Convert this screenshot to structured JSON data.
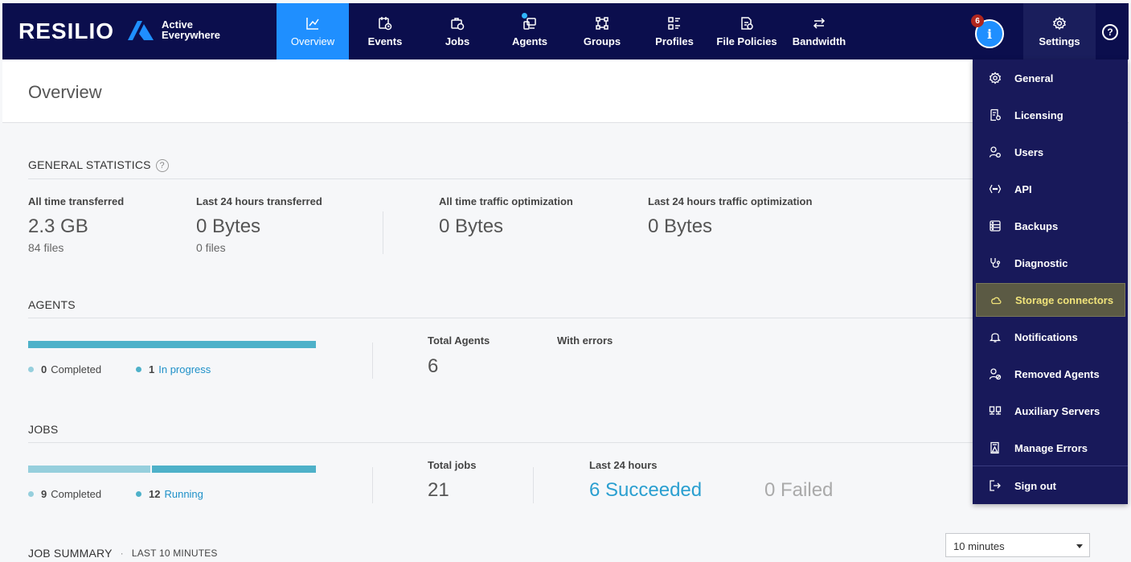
{
  "brand": {
    "name": "RESILIO",
    "product": "Active Everywhere"
  },
  "nav": {
    "items": [
      {
        "label": "Overview",
        "icon": "chart-line-icon"
      },
      {
        "label": "Events",
        "icon": "calendar-clock-icon"
      },
      {
        "label": "Jobs",
        "icon": "briefcase-icon"
      },
      {
        "label": "Agents",
        "icon": "devices-icon"
      },
      {
        "label": "Groups",
        "icon": "group-nodes-icon"
      },
      {
        "label": "Profiles",
        "icon": "profile-grid-icon"
      },
      {
        "label": "File Policies",
        "icon": "file-policy-icon"
      },
      {
        "label": "Bandwidth",
        "icon": "arrows-swap-icon"
      }
    ],
    "notification_count": "6",
    "info_glyph": "i",
    "settings_label": "Settings",
    "help_glyph": "?"
  },
  "page": {
    "title": "Overview"
  },
  "general_statistics": {
    "title": "GENERAL STATISTICS",
    "help": "?",
    "stats": [
      {
        "label": "All time transferred",
        "value": "2.3 GB",
        "sub": "84 files"
      },
      {
        "label": "Last 24 hours transferred",
        "value": "0 Bytes",
        "sub": "0 files"
      },
      {
        "label": "All time traffic optimization",
        "value": "0 Bytes"
      },
      {
        "label": "Last 24 hours traffic optimization",
        "value": "0 Bytes"
      }
    ]
  },
  "agents": {
    "title": "AGENTS",
    "completed_count": "0",
    "completed_label": "Completed",
    "in_progress_count": "1",
    "in_progress_label": "In progress",
    "completed_fraction": 0,
    "total_label": "Total Agents",
    "total_value": "6",
    "errors_label": "With errors"
  },
  "jobs": {
    "title": "JOBS",
    "completed_count": "9",
    "completed_label": "Completed",
    "running_count": "12",
    "running_label": "Running",
    "total_label": "Total jobs",
    "total_value": "21",
    "last24_label": "Last 24 hours",
    "succeeded": "6 Succeeded",
    "failed": "0 Failed"
  },
  "job_summary": {
    "title": "JOB SUMMARY",
    "separator": "·",
    "subtitle": "LAST 10 MINUTES",
    "range": "10 minutes"
  },
  "settings_menu": {
    "items": [
      {
        "label": "General",
        "icon": "gear-icon"
      },
      {
        "label": "Licensing",
        "icon": "license-icon"
      },
      {
        "label": "Users",
        "icon": "users-icon"
      },
      {
        "label": "API",
        "icon": "api-icon"
      },
      {
        "label": "Backups",
        "icon": "backup-icon"
      },
      {
        "label": "Diagnostic",
        "icon": "stethoscope-icon"
      },
      {
        "label": "Storage connectors",
        "icon": "cloud-icon"
      },
      {
        "label": "Notifications",
        "icon": "bell-icon"
      },
      {
        "label": "Removed Agents",
        "icon": "removed-user-icon"
      },
      {
        "label": "Auxiliary Servers",
        "icon": "servers-icon"
      },
      {
        "label": "Manage Errors",
        "icon": "error-file-icon"
      },
      {
        "label": "Sign out",
        "icon": "sign-out-icon"
      }
    ]
  },
  "colors": {
    "nav_bg": "#0b0e4d",
    "active_tab": "#1f8fff",
    "bar_dark": "#4eb1c9",
    "bar_light": "#96cfdd",
    "link": "#1e90c8",
    "menu_bg": "#18195a",
    "menu_highlight": "#5b5a44"
  }
}
